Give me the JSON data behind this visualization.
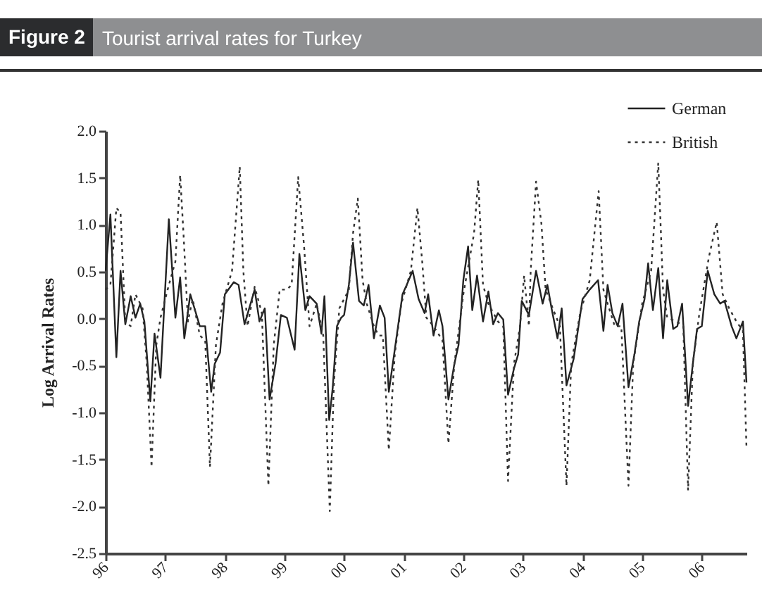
{
  "chart_data": {
    "type": "line",
    "title": "Tourist arrival rates for Turkey",
    "subtitle": "Figure 2",
    "ylabel": "Log Arrival Rates",
    "legend": "top right",
    "grid": false,
    "xlim": [
      1996,
      2006.75
    ],
    "xticks": [
      {
        "value": 1996,
        "label": "96"
      },
      {
        "value": 1997,
        "label": "97"
      },
      {
        "value": 1998,
        "label": "98"
      },
      {
        "value": 1999,
        "label": "99"
      },
      {
        "value": 2000,
        "label": "00"
      },
      {
        "value": 2001,
        "label": "01"
      },
      {
        "value": 2002,
        "label": "02"
      },
      {
        "value": 2003,
        "label": "03"
      },
      {
        "value": 2004,
        "label": "04"
      },
      {
        "value": 2005,
        "label": "05"
      },
      {
        "value": 2006,
        "label": "06"
      }
    ],
    "ylim": [
      -2.5,
      2.0
    ],
    "yticks": [
      {
        "value": -2.5,
        "label": "-2.5"
      },
      {
        "value": -2,
        "label": "-2.0"
      },
      {
        "value": -1.5,
        "label": "-1.5"
      },
      {
        "value": -1,
        "label": "-1.0"
      },
      {
        "value": -0.5,
        "label": "-0.5"
      },
      {
        "value": 0,
        "label": "0.0"
      },
      {
        "value": 0.5,
        "label": "0.5"
      },
      {
        "value": 1,
        "label": "1.0"
      },
      {
        "value": 1.5,
        "label": "1.5"
      },
      {
        "value": 2,
        "label": "2.0"
      }
    ],
    "series": [
      {
        "name": "German",
        "color": "#222222",
        "line_style": "solid",
        "x": [
          1996.0,
          1996.08,
          1996.18,
          1996.25,
          1996.33,
          1996.42,
          1996.5,
          1996.58,
          1996.65,
          1996.75,
          1996.82,
          1996.92,
          1997.06,
          1997.17,
          1997.25,
          1997.32,
          1997.42,
          1997.58,
          1997.67,
          1997.77,
          1997.83,
          1997.92,
          1998.0,
          1998.15,
          1998.23,
          1998.33,
          1998.5,
          1998.58,
          1998.67,
          1998.75,
          1998.85,
          1998.94,
          1999.04,
          1999.17,
          1999.25,
          1999.35,
          1999.42,
          1999.54,
          1999.62,
          1999.67,
          1999.75,
          1999.81,
          1999.88,
          1999.95,
          2000.0,
          2000.08,
          2000.15,
          2000.25,
          2000.33,
          2000.41,
          2000.5,
          2000.6,
          2000.68,
          2000.75,
          2000.85,
          2000.98,
          2001.05,
          2001.15,
          2001.25,
          2001.35,
          2001.41,
          2001.5,
          2001.59,
          2001.65,
          2001.75,
          2001.85,
          2001.92,
          2002.0,
          2002.08,
          2002.15,
          2002.23,
          2002.33,
          2002.42,
          2002.5,
          2002.58,
          2002.67,
          2002.75,
          2002.85,
          2002.92,
          2002.98,
          2003.1,
          2003.22,
          2003.33,
          2003.41,
          2003.48,
          2003.58,
          2003.65,
          2003.73,
          2003.85,
          2004.0,
          2004.12,
          2004.26,
          2004.35,
          2004.42,
          2004.5,
          2004.59,
          2004.67,
          2004.77,
          2004.87,
          2004.95,
          2005.04,
          2005.1,
          2005.18,
          2005.27,
          2005.35,
          2005.42,
          2005.52,
          2005.59,
          2005.67,
          2005.77,
          2005.85,
          2005.92,
          2006.0,
          2006.1,
          2006.21,
          2006.31,
          2006.38,
          2006.5,
          2006.58,
          2006.69,
          2006.75
        ],
        "values": [
          0.51,
          1.11,
          -0.41,
          0.51,
          -0.06,
          0.24,
          0.01,
          0.16,
          -0.03,
          -0.88,
          -0.16,
          -0.63,
          1.06,
          0.01,
          0.44,
          -0.21,
          0.26,
          -0.08,
          -0.08,
          -0.78,
          -0.48,
          -0.36,
          0.26,
          0.39,
          0.36,
          -0.06,
          0.31,
          -0.03,
          0.11,
          -0.86,
          -0.48,
          0.04,
          0.01,
          -0.33,
          0.69,
          0.09,
          0.24,
          0.16,
          -0.16,
          0.24,
          -1.08,
          -0.73,
          -0.08,
          0.01,
          0.04,
          0.36,
          0.81,
          0.19,
          0.14,
          0.36,
          -0.21,
          0.14,
          0.01,
          -0.78,
          -0.33,
          0.26,
          0.36,
          0.51,
          0.21,
          0.06,
          0.26,
          -0.18,
          0.09,
          -0.08,
          -0.86,
          -0.48,
          -0.28,
          0.41,
          0.77,
          0.09,
          0.46,
          -0.03,
          0.29,
          -0.06,
          0.06,
          -0.01,
          -0.81,
          -0.53,
          -0.38,
          0.19,
          0.04,
          0.51,
          0.16,
          0.36,
          0.11,
          -0.21,
          0.11,
          -0.71,
          -0.43,
          0.21,
          0.31,
          0.41,
          -0.13,
          0.36,
          0.06,
          -0.08,
          0.16,
          -0.73,
          -0.38,
          -0.03,
          0.21,
          0.59,
          0.09,
          0.54,
          -0.21,
          0.41,
          -0.11,
          -0.08,
          0.16,
          -0.93,
          -0.48,
          -0.11,
          -0.08,
          0.51,
          0.26,
          0.16,
          0.19,
          -0.08,
          -0.21,
          -0.03,
          -0.68
        ]
      },
      {
        "name": "British",
        "color": "#333333",
        "line_style": "dotted",
        "x": [
          1996.0,
          1996.08,
          1996.18,
          1996.25,
          1996.33,
          1996.42,
          1996.5,
          1996.62,
          1996.69,
          1996.77,
          1996.85,
          1996.92,
          1997.04,
          1997.17,
          1997.25,
          1997.31,
          1997.38,
          1997.46,
          1997.58,
          1997.67,
          1997.75,
          1997.85,
          1997.96,
          1998.12,
          1998.25,
          1998.31,
          1998.38,
          1998.5,
          1998.62,
          1998.73,
          1998.82,
          1998.92,
          1999.04,
          1999.12,
          1999.23,
          1999.33,
          1999.42,
          1999.54,
          1999.65,
          1999.76,
          1999.83,
          1999.92,
          2000.08,
          2000.15,
          2000.23,
          2000.31,
          2000.38,
          2000.5,
          2000.58,
          2000.65,
          2000.75,
          2000.85,
          2000.96,
          2001.12,
          2001.23,
          2001.31,
          2001.38,
          2001.5,
          2001.65,
          2001.75,
          2001.85,
          2002.0,
          2002.18,
          2002.25,
          2002.33,
          2002.42,
          2002.58,
          2002.67,
          2002.75,
          2002.85,
          2002.95,
          2003.02,
          2003.1,
          2003.13,
          2003.22,
          2003.31,
          2003.38,
          2003.5,
          2003.62,
          2003.73,
          2003.81,
          2003.96,
          2004.12,
          2004.27,
          2004.35,
          2004.42,
          2004.54,
          2004.65,
          2004.77,
          2004.85,
          2005.0,
          2005.15,
          2005.27,
          2005.35,
          2005.42,
          2005.58,
          2005.69,
          2005.77,
          2005.85,
          2005.96,
          2006.12,
          2006.25,
          2006.35,
          2006.46,
          2006.58,
          2006.69,
          2006.75
        ],
        "values": [
          0.31,
          0.36,
          1.18,
          1.13,
          -0.03,
          -0.08,
          0.26,
          0.11,
          -0.48,
          -1.58,
          -0.28,
          0.01,
          0.31,
          0.61,
          1.53,
          0.86,
          -0.03,
          0.21,
          -0.18,
          -0.23,
          -1.58,
          -0.28,
          0.16,
          0.51,
          1.62,
          0.51,
          -0.08,
          0.34,
          0.06,
          -1.78,
          -0.28,
          0.31,
          0.31,
          0.36,
          1.51,
          0.76,
          -0.08,
          0.16,
          -0.18,
          -2.05,
          -0.68,
          0.11,
          0.31,
          0.91,
          1.28,
          0.41,
          0.16,
          -0.08,
          -0.18,
          -0.18,
          -1.4,
          -0.38,
          0.16,
          0.51,
          1.18,
          0.61,
          0.01,
          -0.08,
          -0.23,
          -1.33,
          -0.48,
          0.26,
          0.91,
          1.48,
          0.36,
          0.16,
          -0.03,
          -0.08,
          -1.73,
          -0.48,
          -0.08,
          0.46,
          -0.08,
          0.51,
          1.46,
          1.01,
          0.31,
          0.11,
          -0.08,
          -1.78,
          -0.48,
          0.06,
          0.41,
          1.36,
          0.31,
          0.16,
          -0.08,
          -0.08,
          -1.78,
          -0.48,
          0.16,
          0.51,
          1.66,
          0.31,
          0.01,
          -0.03,
          -0.08,
          -1.83,
          -0.48,
          0.06,
          0.66,
          1.03,
          0.26,
          0.11,
          -0.03,
          -0.13,
          -1.38
        ]
      }
    ]
  }
}
